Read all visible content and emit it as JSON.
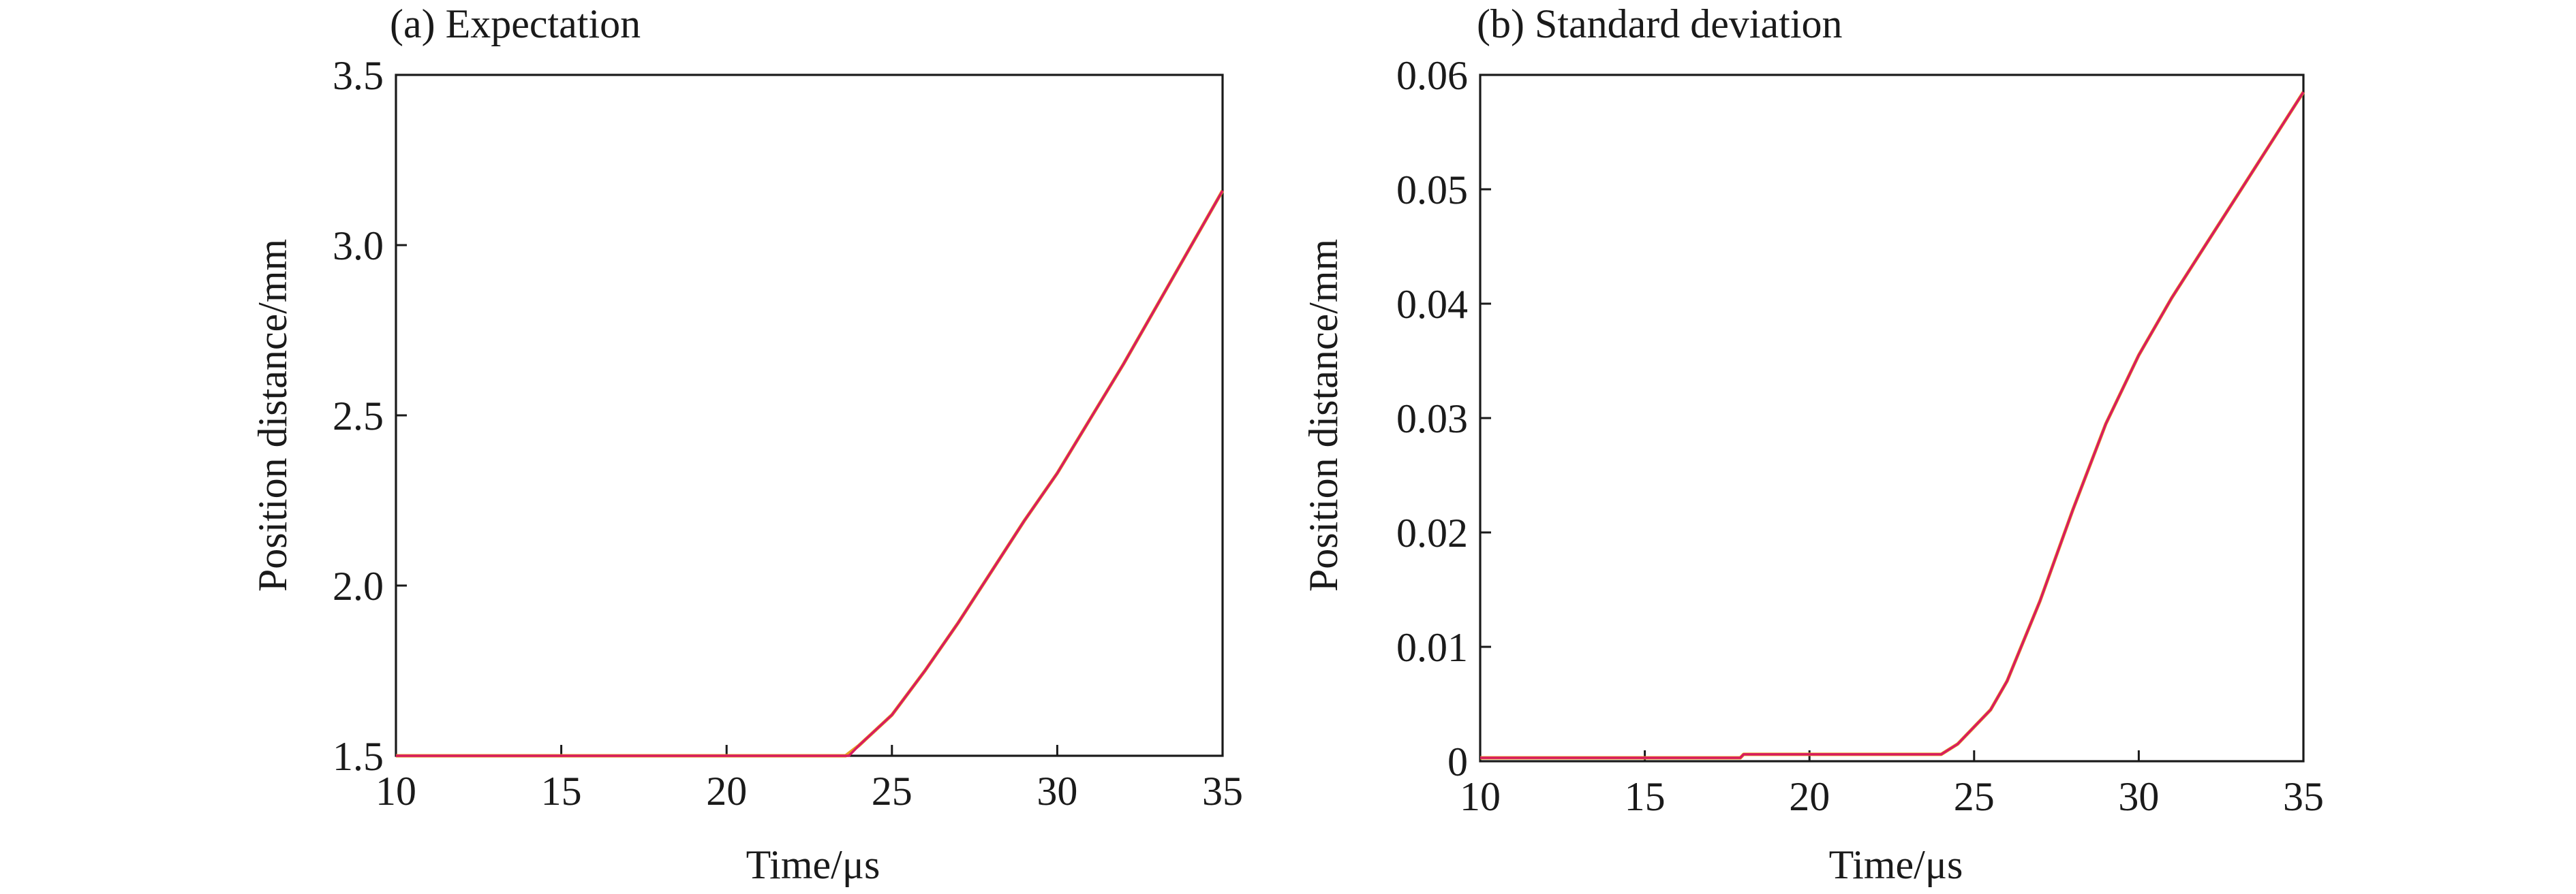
{
  "chart_data": [
    {
      "type": "line",
      "title": "(a) Expectation",
      "xlabel": "Time/μs",
      "ylabel": "Position distance/mm",
      "xlim": [
        10,
        35
      ],
      "ylim": [
        1.5,
        3.5
      ],
      "x_ticks": [
        "10",
        "15",
        "20",
        "25",
        "30",
        "35"
      ],
      "y_ticks": [
        "1.5",
        "2.0",
        "2.5",
        "3.0",
        "3.5"
      ],
      "grid": false,
      "series": [
        {
          "color": "#e8a020",
          "x": [
            10,
            23.6,
            24,
            25,
            26,
            27,
            28,
            29,
            30,
            31,
            32,
            33,
            34,
            35
          ],
          "y": [
            1.5,
            1.5,
            1.53,
            1.62,
            1.75,
            1.89,
            2.04,
            2.19,
            2.33,
            2.49,
            2.65,
            2.82,
            2.99,
            3.16
          ]
        },
        {
          "color": "#d81b60",
          "x": [
            10,
            23.7,
            24,
            25,
            26,
            27,
            28,
            29,
            30,
            31,
            32,
            33,
            34,
            35
          ],
          "y": [
            1.5,
            1.5,
            1.53,
            1.62,
            1.75,
            1.89,
            2.04,
            2.19,
            2.33,
            2.49,
            2.65,
            2.82,
            2.99,
            3.16
          ]
        }
      ]
    },
    {
      "type": "line",
      "title": "(b) Standard deviation",
      "xlabel": "Time/μs",
      "ylabel": "Position distance/mm",
      "xlim": [
        10,
        35
      ],
      "ylim": [
        0,
        0.06
      ],
      "x_ticks": [
        "10",
        "15",
        "20",
        "25",
        "30",
        "35"
      ],
      "y_ticks": [
        "0",
        "0.01",
        "0.02",
        "0.03",
        "0.04",
        "0.05",
        "0.06"
      ],
      "grid": false,
      "series": [
        {
          "color": "#e8a020",
          "x": [
            10,
            17.9,
            18,
            24.0,
            24.5,
            25,
            25.5,
            26,
            27,
            28,
            29,
            30,
            31,
            32,
            33,
            34,
            35
          ],
          "y": [
            0.0003,
            0.0003,
            0.0006,
            0.0006,
            0.0015,
            0.003,
            0.0045,
            0.007,
            0.014,
            0.022,
            0.0295,
            0.0355,
            0.0405,
            0.045,
            0.0495,
            0.054,
            0.0585
          ]
        },
        {
          "color": "#d81b60",
          "x": [
            10,
            17.9,
            18,
            24.0,
            24.5,
            25,
            25.5,
            26,
            27,
            28,
            29,
            30,
            31,
            32,
            33,
            34,
            35
          ],
          "y": [
            0.0003,
            0.0003,
            0.0006,
            0.0006,
            0.0015,
            0.003,
            0.0045,
            0.007,
            0.014,
            0.022,
            0.0295,
            0.0355,
            0.0405,
            0.045,
            0.0495,
            0.054,
            0.0585
          ]
        }
      ]
    }
  ]
}
